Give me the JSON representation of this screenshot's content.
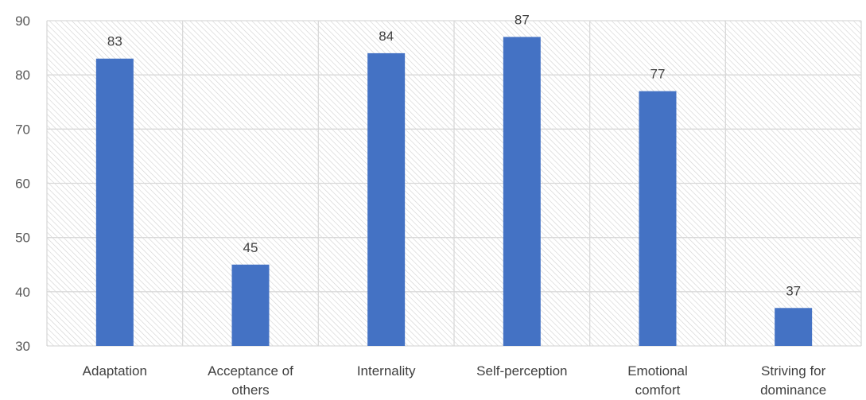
{
  "chart_data": {
    "type": "bar",
    "title": "",
    "xlabel": "",
    "ylabel": "",
    "categories": [
      [
        "Adaptation"
      ],
      [
        "Acceptance of",
        "others"
      ],
      [
        "Internality"
      ],
      [
        "Self-perception"
      ],
      [
        "Emotional",
        "comfort"
      ],
      [
        "Striving for",
        "dominance"
      ]
    ],
    "series": [
      {
        "values": [
          83,
          45,
          84,
          87,
          77,
          37
        ]
      }
    ],
    "data_labels": true,
    "ylim": [
      30,
      90
    ],
    "yticks": [
      30,
      40,
      50,
      60,
      70,
      80,
      90
    ],
    "grid": true,
    "plot_background": "hatched",
    "colors": {
      "bar": "#4472C4",
      "grid": "#d9d9d9",
      "hatch": "#d0d0d0"
    }
  }
}
